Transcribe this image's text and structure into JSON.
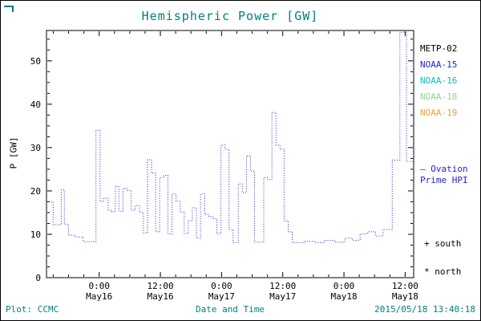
{
  "title": "Hemispheric Power [GW]",
  "ylabel": "P [GW]",
  "xlabel": "Date and Time",
  "footer": {
    "plot_credit": "Plot: CCMC",
    "timestamp": "2015/05/18 13:40:18"
  },
  "legend": {
    "satellites": [
      {
        "label": "METP-02",
        "color": "#000000"
      },
      {
        "label": "NOAA-15",
        "color": "#2222dd"
      },
      {
        "label": "NOAA-16",
        "color": "#00c0c0"
      },
      {
        "label": "NOAA-18",
        "color": "#90d890"
      },
      {
        "label": "NOAA-19",
        "color": "#f0a030"
      }
    ]
  },
  "annotations": {
    "ovation_line1": "— Ovation",
    "ovation_line2": "Prime HPI",
    "south_marker": "+ south",
    "north_marker": "* north"
  },
  "colors": {
    "accent_teal": "#008080",
    "line_blue": "#2222dd"
  },
  "chart_data": {
    "type": "line",
    "style": "step-post, dotted",
    "series_name": "Ovation Prime HPI",
    "line_color": "#2222dd",
    "grid": false,
    "legend_position": "right-outside",
    "xlim": [
      0,
      72
    ],
    "ylim": [
      0,
      57
    ],
    "yticks": [
      0,
      10,
      20,
      30,
      40,
      50
    ],
    "xticks": [
      {
        "pos": 10.33,
        "time": "0:00",
        "date": "May16"
      },
      {
        "pos": 22.33,
        "time": "12:00",
        "date": "May16"
      },
      {
        "pos": 34.33,
        "time": "0:00",
        "date": "May17"
      },
      {
        "pos": 46.33,
        "time": "12:00",
        "date": "May17"
      },
      {
        "pos": 58.33,
        "time": "0:00",
        "date": "May18"
      },
      {
        "pos": 70.33,
        "time": "12:00",
        "date": "May18"
      }
    ],
    "x": [
      0.0,
      1.3,
      2.9,
      3.5,
      4.3,
      5.6,
      7.2,
      9.7,
      10.5,
      11.2,
      12.1,
      12.8,
      13.5,
      14.2,
      15.0,
      15.8,
      16.6,
      17.4,
      18.2,
      19.0,
      19.8,
      20.6,
      21.4,
      22.2,
      23.0,
      23.8,
      24.6,
      25.4,
      26.2,
      27.0,
      27.8,
      28.6,
      29.4,
      30.2,
      31.0,
      31.8,
      32.6,
      33.4,
      34.2,
      35.0,
      35.8,
      36.6,
      37.6,
      38.4,
      39.2,
      40.0,
      40.8,
      42.6,
      43.4,
      44.2,
      45.0,
      45.8,
      46.6,
      47.4,
      48.2,
      50.5,
      52.5,
      54.5,
      56.5,
      58.5,
      60.0,
      61.5,
      63.0,
      64.5,
      66.0,
      67.8,
      69.3,
      70.6
    ],
    "y": [
      17.5,
      12.2,
      20.2,
      12.3,
      9.8,
      9.4,
      8.3,
      34.0,
      17.6,
      18.3,
      15.6,
      15.2,
      21.1,
      15.3,
      20.6,
      20.1,
      15.6,
      16.6,
      15.1,
      10.3,
      27.2,
      24.1,
      10.6,
      23.1,
      23.6,
      10.1,
      19.3,
      17.6,
      15.1,
      10.2,
      13.1,
      16.1,
      9.1,
      19.3,
      14.6,
      14.1,
      13.6,
      10.1,
      30.6,
      29.6,
      11.1,
      8.1,
      21.6,
      19.6,
      28.1,
      24.6,
      8.2,
      23.1,
      22.6,
      38.1,
      30.6,
      29.6,
      13.1,
      10.6,
      8.1,
      8.4,
      8.1,
      8.6,
      8.2,
      9.1,
      8.6,
      10.1,
      10.6,
      9.6,
      11.1,
      27.1,
      56.6,
      26.8
    ]
  }
}
